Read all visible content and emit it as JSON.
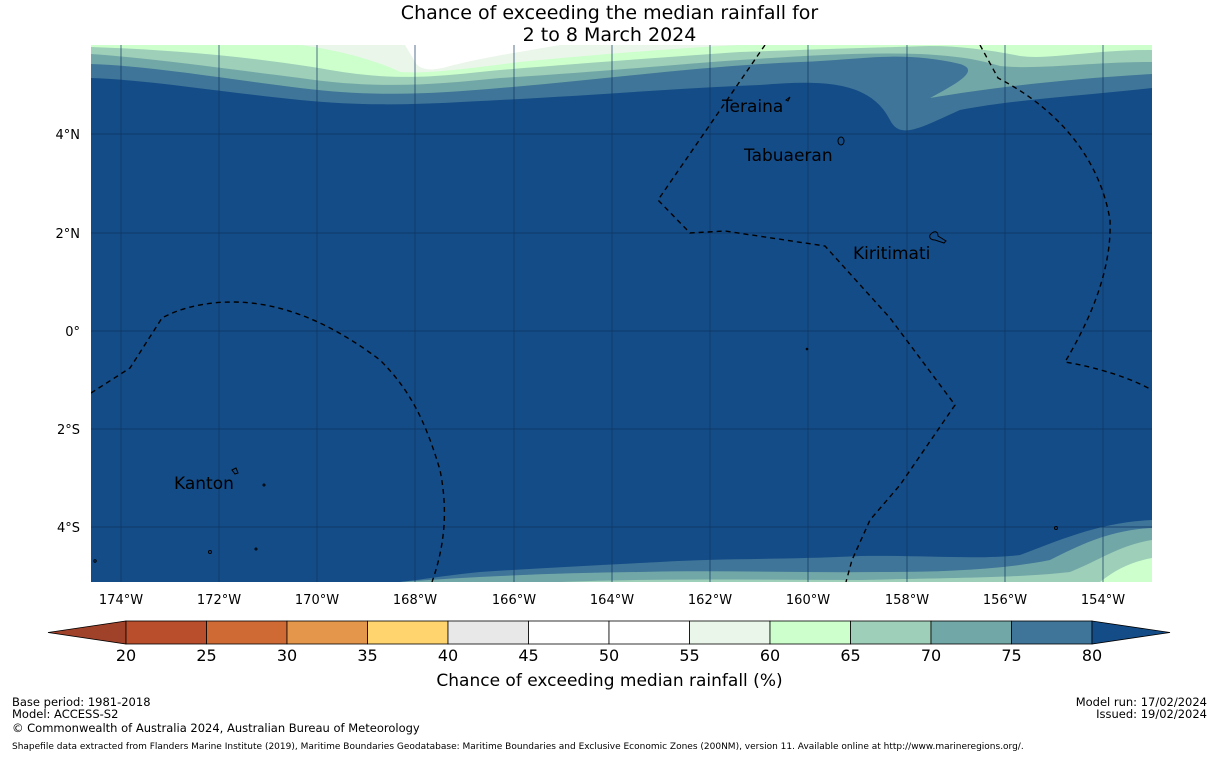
{
  "title_line1": "Chance of exceeding the median rainfall for",
  "title_line2": "2 to 8 March 2024",
  "lat_labels": [
    "4°N",
    "2°N",
    "0°",
    "2°S",
    "4°S"
  ],
  "lon_labels": [
    "174°W",
    "172°W",
    "170°W",
    "168°W",
    "166°W",
    "164°W",
    "162°W",
    "160°W",
    "158°W",
    "156°W",
    "154°W"
  ],
  "places": [
    "Teraina",
    "Tabuaeran",
    "Kiritimati",
    "Kanton"
  ],
  "colorbar": {
    "ticks": [
      "20",
      "25",
      "30",
      "35",
      "40",
      "45",
      "50",
      "55",
      "60",
      "65",
      "70",
      "75",
      "80"
    ],
    "colors": [
      "#a0412a",
      "#b84e2c",
      "#d06a35",
      "#e4974a",
      "#ffd36e",
      "#e8e8e8",
      "#ffffff",
      "#ffffff",
      "#eaf6ea",
      "#ccffcc",
      "#9ecfb8",
      "#72a7a7",
      "#3f7598",
      "#144c87"
    ],
    "label": "Chance of exceeding median rainfall (%)"
  },
  "footer": {
    "base_period": "Base period: 1981-2018",
    "model": "Model: ACCESS-S2",
    "copyright": "© Commonwealth of Australia 2024, Australian Bureau of Meteorology",
    "model_run": "Model run: 17/02/2024",
    "issued": "Issued: 19/02/2024",
    "shapefile": "Shapefile data extracted from Flanders Marine Institute (2019), Maritime Boundaries Geodatabase: Maritime Boundaries and Exclusive Economic Zones (200NM), version 11. Available online at http://www.marineregions.org/."
  }
}
